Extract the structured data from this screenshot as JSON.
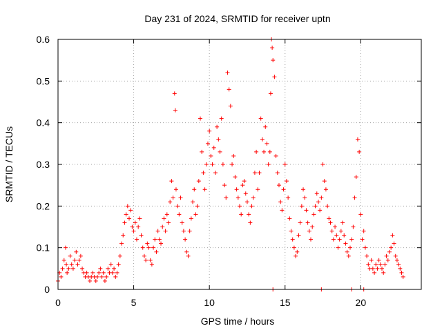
{
  "chart_data": {
    "type": "scatter",
    "title": "Day 231 of 2024, SRMTID for receiver uptn",
    "xlabel": "GPS time / hours",
    "ylabel": "SRMTID / TECUs",
    "xlim": [
      0,
      24
    ],
    "ylim": [
      0,
      0.6
    ],
    "x_ticks": [
      0,
      5,
      10,
      15,
      20
    ],
    "x_tick_labels": [
      "0",
      "5",
      "10",
      "15",
      "20"
    ],
    "y_ticks": [
      0,
      0.1,
      0.2,
      0.3,
      0.4,
      0.5,
      0.6
    ],
    "y_tick_labels": [
      "0",
      "0.1",
      "0.2",
      "0.3",
      "0.4",
      "0.5",
      "0.6"
    ],
    "grid": true,
    "marker": "plus",
    "series_color": "#ff0000",
    "series": [
      {
        "name": "SRMTID",
        "x": [
          0.0,
          0.1,
          0.2,
          0.3,
          0.4,
          0.5,
          0.55,
          0.6,
          0.7,
          0.8,
          0.9,
          1.0,
          1.1,
          1.2,
          1.3,
          1.4,
          1.5,
          1.6,
          1.7,
          1.8,
          1.9,
          2.0,
          2.1,
          2.2,
          2.3,
          2.4,
          2.5,
          2.6,
          2.7,
          2.8,
          2.9,
          3.0,
          3.1,
          3.2,
          3.3,
          3.4,
          3.5,
          3.6,
          3.7,
          3.8,
          3.9,
          4.0,
          4.1,
          4.2,
          4.3,
          4.4,
          4.5,
          4.6,
          4.7,
          4.8,
          4.9,
          5.0,
          5.1,
          5.2,
          5.3,
          5.4,
          5.5,
          5.6,
          5.7,
          5.8,
          5.9,
          6.0,
          6.1,
          6.2,
          6.3,
          6.4,
          6.5,
          6.6,
          6.7,
          6.8,
          6.9,
          7.0,
          7.1,
          7.2,
          7.3,
          7.4,
          7.5,
          7.6,
          7.7,
          7.75,
          7.8,
          7.9,
          8.0,
          8.1,
          8.2,
          8.3,
          8.4,
          8.5,
          8.6,
          8.7,
          8.8,
          8.9,
          9.0,
          9.1,
          9.2,
          9.3,
          9.4,
          9.5,
          9.6,
          9.7,
          9.8,
          9.9,
          10.0,
          10.1,
          10.2,
          10.3,
          10.4,
          10.5,
          10.6,
          10.7,
          10.8,
          10.9,
          11.0,
          11.1,
          11.2,
          11.3,
          11.4,
          11.5,
          11.6,
          11.7,
          11.8,
          11.9,
          12.0,
          12.1,
          12.2,
          12.3,
          12.4,
          12.5,
          12.6,
          12.7,
          12.8,
          12.9,
          13.0,
          13.1,
          13.2,
          13.3,
          13.4,
          13.5,
          13.6,
          13.7,
          13.8,
          13.9,
          14.0,
          14.05,
          14.1,
          14.15,
          14.2,
          14.3,
          14.4,
          14.5,
          14.6,
          14.7,
          14.8,
          14.9,
          15.0,
          15.1,
          15.2,
          15.3,
          15.4,
          15.5,
          15.6,
          15.7,
          15.8,
          15.9,
          16.0,
          16.1,
          16.2,
          16.3,
          16.4,
          16.5,
          16.6,
          16.7,
          16.8,
          16.9,
          17.0,
          17.1,
          17.2,
          17.3,
          17.4,
          17.5,
          17.6,
          17.7,
          17.8,
          17.9,
          18.0,
          18.1,
          18.2,
          18.3,
          18.4,
          18.5,
          18.6,
          18.7,
          18.8,
          18.9,
          19.0,
          19.1,
          19.2,
          19.3,
          19.4,
          19.5,
          19.6,
          19.7,
          19.8,
          19.9,
          20.0,
          20.1,
          20.2,
          20.3,
          20.4,
          20.5,
          20.6,
          20.7,
          20.8,
          20.9,
          21.0,
          21.1,
          21.2,
          21.3,
          21.4,
          21.5,
          21.6,
          21.7,
          21.8,
          21.9,
          22.0,
          22.1,
          22.2,
          22.3,
          22.4,
          22.5,
          22.6,
          22.7,
          22.8
        ],
        "y": [
          0.02,
          0.04,
          0.03,
          0.05,
          0.07,
          0.1,
          0.06,
          0.04,
          0.05,
          0.08,
          0.06,
          0.05,
          0.07,
          0.09,
          0.06,
          0.07,
          0.08,
          0.05,
          0.04,
          0.03,
          0.04,
          0.03,
          0.02,
          0.03,
          0.04,
          0.03,
          0.02,
          0.03,
          0.04,
          0.05,
          0.03,
          0.04,
          0.02,
          0.03,
          0.05,
          0.04,
          0.06,
          0.04,
          0.05,
          0.03,
          0.04,
          0.06,
          0.08,
          0.11,
          0.13,
          0.16,
          0.18,
          0.2,
          0.17,
          0.19,
          0.15,
          0.14,
          0.16,
          0.12,
          0.15,
          0.17,
          0.13,
          0.1,
          0.08,
          0.07,
          0.11,
          0.1,
          0.07,
          0.06,
          0.1,
          0.12,
          0.09,
          0.14,
          0.12,
          0.11,
          0.15,
          0.17,
          0.14,
          0.18,
          0.16,
          0.21,
          0.26,
          0.22,
          0.47,
          0.43,
          0.24,
          0.2,
          0.18,
          0.22,
          0.16,
          0.14,
          0.12,
          0.09,
          0.08,
          0.14,
          0.17,
          0.21,
          0.24,
          0.18,
          0.2,
          0.26,
          0.41,
          0.33,
          0.28,
          0.24,
          0.3,
          0.35,
          0.38,
          0.32,
          0.3,
          0.34,
          0.28,
          0.39,
          0.36,
          0.33,
          0.41,
          0.3,
          0.25,
          0.22,
          0.52,
          0.48,
          0.44,
          0.3,
          0.32,
          0.27,
          0.24,
          0.22,
          0.2,
          0.18,
          0.25,
          0.26,
          0.23,
          0.21,
          0.18,
          0.16,
          0.2,
          0.22,
          0.28,
          0.33,
          0.24,
          0.28,
          0.41,
          0.36,
          0.33,
          0.39,
          0.35,
          0.3,
          0.33,
          0.47,
          0.6,
          0.58,
          0.55,
          0.51,
          0.32,
          0.28,
          0.25,
          0.21,
          0.19,
          0.24,
          0.3,
          0.26,
          0.22,
          0.17,
          0.14,
          0.12,
          0.1,
          0.08,
          0.09,
          0.13,
          0.16,
          0.2,
          0.24,
          0.22,
          0.19,
          0.16,
          0.14,
          0.12,
          0.15,
          0.18,
          0.2,
          0.23,
          0.21,
          0.19,
          0.22,
          0.3,
          0.26,
          0.24,
          0.2,
          0.17,
          0.16,
          0.14,
          0.12,
          0.15,
          0.13,
          0.1,
          0.12,
          0.14,
          0.16,
          0.13,
          0.11,
          0.09,
          0.08,
          0.1,
          0.12,
          0.15,
          0.22,
          0.27,
          0.36,
          0.33,
          0.18,
          0.12,
          0.14,
          0.1,
          0.08,
          0.06,
          0.05,
          0.07,
          0.05,
          0.04,
          0.06,
          0.05,
          0.07,
          0.06,
          0.05,
          0.04,
          0.06,
          0.08,
          0.07,
          0.09,
          0.1,
          0.13,
          0.11,
          0.08,
          0.07,
          0.06,
          0.05,
          0.04,
          0.03
        ]
      }
    ],
    "zero_markers_x": [
      14.2,
      17.4,
      19.4,
      20.2
    ]
  }
}
